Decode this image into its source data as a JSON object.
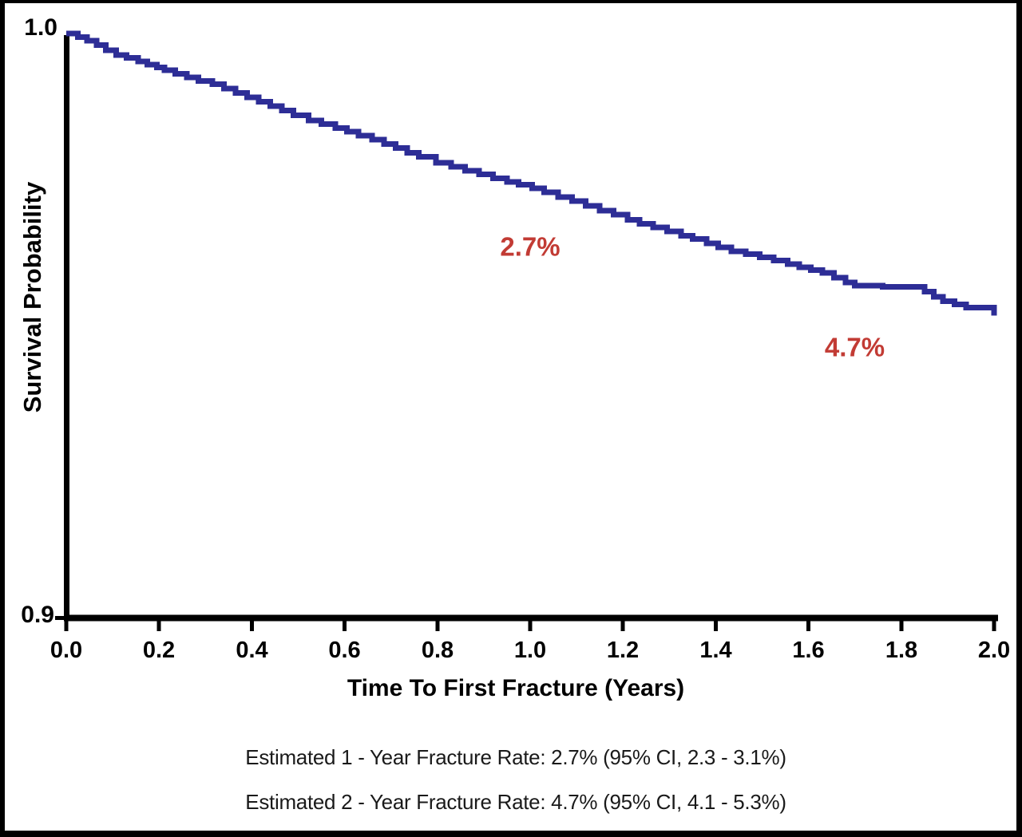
{
  "chart_data": {
    "type": "line",
    "subtype": "kaplan_meier_step_curve",
    "title": "",
    "xlabel": "Time To First Fracture (Years)",
    "ylabel": "Survival Probability",
    "xlim": [
      0.0,
      2.0
    ],
    "ylim": [
      0.9,
      1.0
    ],
    "grid": false,
    "legend": "none",
    "x_tick_labels": [
      "0.0",
      "0.2",
      "0.4",
      "0.6",
      "0.8",
      "1.0",
      "1.2",
      "1.4",
      "1.6",
      "1.8",
      "2.0"
    ],
    "y_tick_labels": [
      "1.0",
      "0.9"
    ],
    "series": [
      {
        "name": "Survival Probability",
        "color": "#2d2d96",
        "points": [
          [
            0.0,
            1.0
          ],
          [
            0.025,
            0.9994
          ],
          [
            0.045,
            0.9988
          ],
          [
            0.065,
            0.998
          ],
          [
            0.085,
            0.9971
          ],
          [
            0.108,
            0.9963
          ],
          [
            0.13,
            0.9958
          ],
          [
            0.155,
            0.9952
          ],
          [
            0.175,
            0.9947
          ],
          [
            0.195,
            0.9942
          ],
          [
            0.212,
            0.9937
          ],
          [
            0.235,
            0.9931
          ],
          [
            0.26,
            0.9925
          ],
          [
            0.285,
            0.9919
          ],
          [
            0.315,
            0.9913
          ],
          [
            0.34,
            0.9906
          ],
          [
            0.365,
            0.9898
          ],
          [
            0.39,
            0.9891
          ],
          [
            0.415,
            0.9883
          ],
          [
            0.44,
            0.9876
          ],
          [
            0.465,
            0.9868
          ],
          [
            0.49,
            0.986
          ],
          [
            0.522,
            0.9851
          ],
          [
            0.55,
            0.9845
          ],
          [
            0.58,
            0.9838
          ],
          [
            0.605,
            0.9832
          ],
          [
            0.63,
            0.9825
          ],
          [
            0.659,
            0.9818
          ],
          [
            0.685,
            0.9811
          ],
          [
            0.71,
            0.9804
          ],
          [
            0.735,
            0.9796
          ],
          [
            0.76,
            0.9789
          ],
          [
            0.797,
            0.9779
          ],
          [
            0.83,
            0.9772
          ],
          [
            0.86,
            0.9765
          ],
          [
            0.89,
            0.9759
          ],
          [
            0.92,
            0.9752
          ],
          [
            0.95,
            0.9746
          ],
          [
            0.975,
            0.9741
          ],
          [
            1.004,
            0.9735
          ],
          [
            1.03,
            0.9728
          ],
          [
            1.06,
            0.972
          ],
          [
            1.09,
            0.9713
          ],
          [
            1.12,
            0.9705
          ],
          [
            1.15,
            0.9697
          ],
          [
            1.18,
            0.969
          ],
          [
            1.21,
            0.9681
          ],
          [
            1.236,
            0.9674
          ],
          [
            1.265,
            0.9668
          ],
          [
            1.295,
            0.9661
          ],
          [
            1.325,
            0.9654
          ],
          [
            1.35,
            0.9648
          ],
          [
            1.38,
            0.9641
          ],
          [
            1.405,
            0.9634
          ],
          [
            1.434,
            0.9627
          ],
          [
            1.465,
            0.9622
          ],
          [
            1.495,
            0.9617
          ],
          [
            1.525,
            0.9611
          ],
          [
            1.555,
            0.9605
          ],
          [
            1.58,
            0.96
          ],
          [
            1.605,
            0.9595
          ],
          [
            1.63,
            0.959
          ],
          [
            1.655,
            0.9582
          ],
          [
            1.68,
            0.9574
          ],
          [
            1.7,
            0.9568
          ],
          [
            1.76,
            0.9566
          ],
          [
            1.85,
            0.9558
          ],
          [
            1.87,
            0.9549
          ],
          [
            1.89,
            0.9542
          ],
          [
            1.915,
            0.9536
          ],
          [
            1.94,
            0.9531
          ],
          [
            2.0,
            0.9517
          ]
        ]
      }
    ],
    "annotations": [
      {
        "text": "2.7%",
        "x": 1.0,
        "y": 0.9635,
        "color": "#c23b34"
      },
      {
        "text": "4.7%",
        "x": 1.7,
        "y": 0.9463,
        "color": "#c23b34"
      }
    ],
    "footnotes": [
      "Estimated 1 - Year Fracture Rate: 2.7% (95% CI, 2.3 - 3.1%)",
      "Estimated 2 - Year Fracture Rate: 4.7% (95% CI, 4.1 - 5.3%)"
    ],
    "estimated_rates": [
      {
        "year": 1,
        "rate": "2.7%",
        "ci_95": "2.3 - 3.1%"
      },
      {
        "year": 2,
        "rate": "4.7%",
        "ci_95": "4.1 - 5.3%"
      }
    ]
  },
  "colors": {
    "curve": "#2d2d96",
    "annotation_red": "#c23b34",
    "axis": "#000000",
    "background": "#ffffff"
  }
}
